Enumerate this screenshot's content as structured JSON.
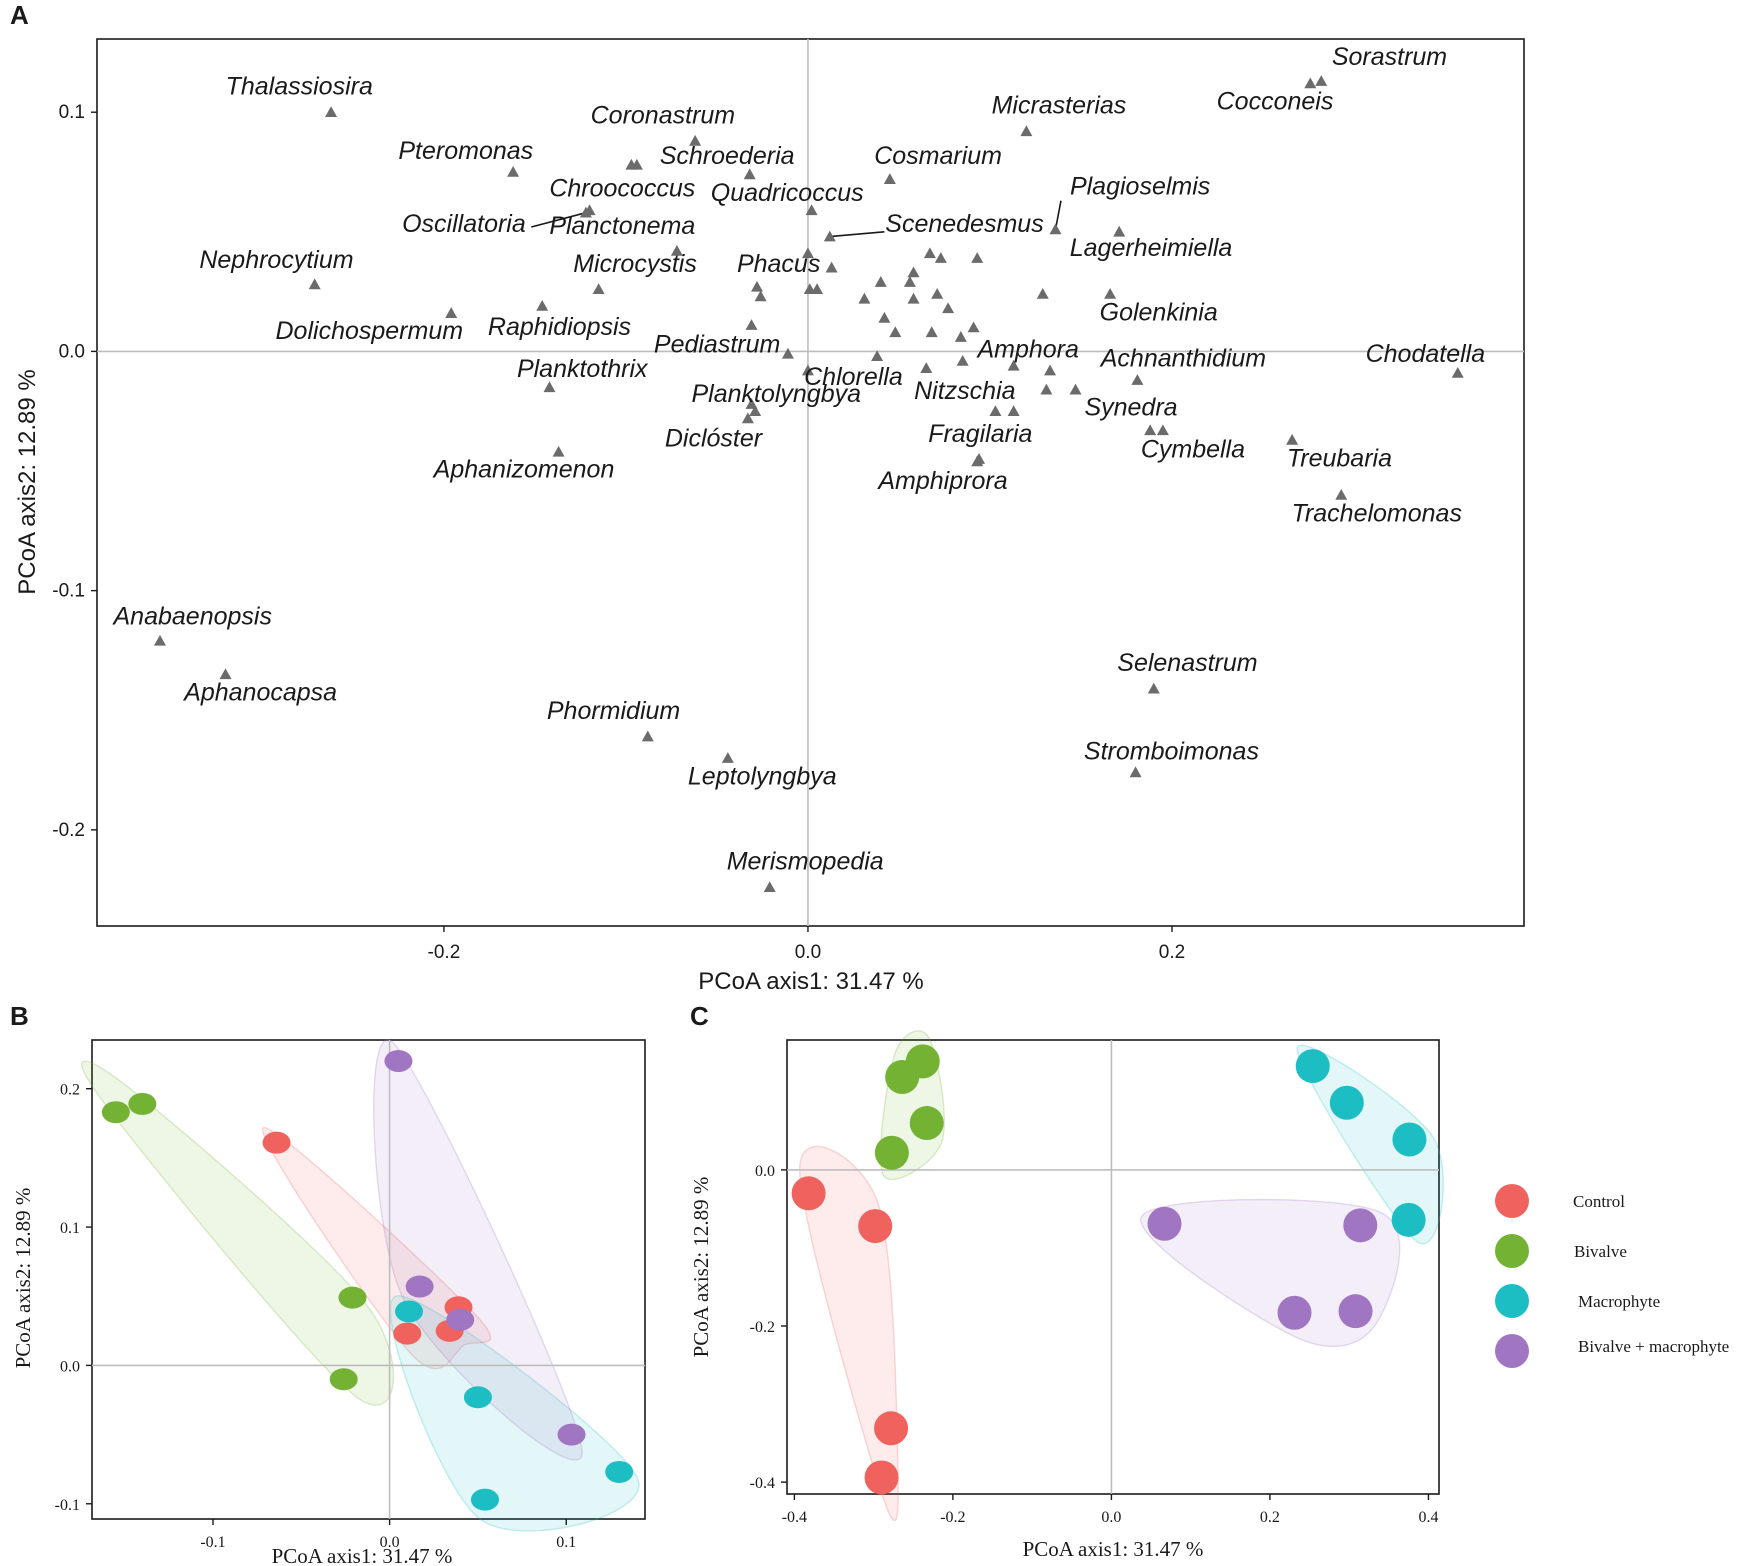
{
  "colors": {
    "Control": "#f0625d",
    "Bivalve": "#73b232",
    "Macrophyte": "#1cbec4",
    "Bivalve + macrophyte": "#a075c2",
    "marker": "#6b6b6b",
    "frame": "#1a1a1a",
    "zero_line": "#bdbdbd"
  },
  "chart_data": [
    {
      "panel": "A",
      "type": "scatter",
      "xlabel": "PCoA axis1:  31.47 %",
      "ylabel": "PCoA axis2:  12.89 %",
      "xlim": [
        -0.3906,
        0.3934
      ],
      "ylim": [
        -0.2402,
        0.1306
      ],
      "xticks": [
        -0.2,
        0.0,
        0.2
      ],
      "xtick_labels": [
        "-0.2",
        "0.0",
        "0.2"
      ],
      "yticks": [
        -0.2,
        -0.1,
        0.0,
        0.1
      ],
      "ytick_labels": [
        "-0.2",
        "-0.1",
        "0.0",
        "0.1"
      ],
      "zero_lines": true,
      "labeled_points": [
        {
          "label": "Thalassiosira",
          "x": -0.262,
          "y": 0.1,
          "lx": -0.2795,
          "ly": 0.1074
        },
        {
          "label": "Sorastrum",
          "x": 0.282,
          "y": 0.113,
          "lx": 0.3195,
          "ly": 0.1198
        },
        {
          "label": "Cocconeis",
          "x": 0.276,
          "y": 0.112,
          "lx": 0.2566,
          "ly": 0.1012
        },
        {
          "label": "Coronastrum",
          "x": -0.062,
          "y": 0.088,
          "lx": -0.0797,
          "ly": 0.0952
        },
        {
          "label": "Micrasterias",
          "x": 0.12,
          "y": 0.092,
          "lx": 0.1379,
          "ly": 0.0995
        },
        {
          "label": "Pteromonas",
          "x": -0.162,
          "y": 0.075,
          "lx": -0.188,
          "ly": 0.0805
        },
        {
          "label": "Schroederia",
          "x": -0.094,
          "y": 0.078,
          "lx": -0.0444,
          "ly": 0.0783
        },
        {
          "label": "Cosmarium",
          "x": 0.045,
          "y": 0.072,
          "lx": 0.0715,
          "ly": 0.0783
        },
        {
          "label": "Chroococcus",
          "x": -0.12,
          "y": 0.059,
          "lx": -0.102,
          "ly": 0.0648
        },
        {
          "label": "Quadricoccus",
          "x": 0.002,
          "y": 0.059,
          "lx": -0.0114,
          "ly": 0.0628
        },
        {
          "label": "Plagioselmis",
          "x": 0.136,
          "y": 0.051,
          "lx": 0.1825,
          "ly": 0.0656
        },
        {
          "label": "Oscillatoria",
          "x": -0.122,
          "y": 0.058,
          "lx": -0.189,
          "ly": 0.0499
        },
        {
          "label": "Planctonema",
          "x": -0.072,
          "y": 0.042,
          "lx": -0.102,
          "ly": 0.0491
        },
        {
          "label": "Scenedesmus",
          "x": 0.012,
          "y": 0.048,
          "lx": 0.086,
          "ly": 0.0499
        },
        {
          "label": "Lagerheimiella",
          "x": 0.171,
          "y": 0.05,
          "lx": 0.1885,
          "ly": 0.0398
        },
        {
          "label": "Nephrocytium",
          "x": -0.271,
          "y": 0.028,
          "lx": -0.292,
          "ly": 0.0349
        },
        {
          "label": "Microcystis",
          "x": -0.115,
          "y": 0.026,
          "lx": -0.095,
          "ly": 0.0333
        },
        {
          "label": "Phacus",
          "x": -0.026,
          "y": 0.023,
          "lx": -0.0161,
          "ly": 0.0333
        },
        {
          "label": "Golenkinia",
          "x": 0.166,
          "y": 0.024,
          "lx": 0.1927,
          "ly": 0.0129
        },
        {
          "label": "Dolichospermum",
          "x": -0.196,
          "y": 0.016,
          "lx": -0.241,
          "ly": 0.0052
        },
        {
          "label": "Raphidiopsis",
          "x": -0.146,
          "y": 0.019,
          "lx": -0.1365,
          "ly": 0.0069
        },
        {
          "label": "Pediastrum",
          "x": -0.031,
          "y": 0.011,
          "lx": -0.0499,
          "ly": -0.0005
        },
        {
          "label": "Amphora",
          "x": 0.133,
          "y": -0.008,
          "lx": 0.121,
          "ly": -0.0026
        },
        {
          "label": "Achnanthidium",
          "x": 0.181,
          "y": -0.012,
          "lx": 0.2063,
          "ly": -0.0064
        },
        {
          "label": "Chodatella",
          "x": 0.357,
          "y": -0.009,
          "lx": 0.3392,
          "ly": -0.0044
        },
        {
          "label": "Planktothrix",
          "x": -0.142,
          "y": -0.015,
          "lx": -0.124,
          "ly": -0.0107
        },
        {
          "label": "Chlorella",
          "x": 0.0,
          "y": -0.008,
          "lx": 0.025,
          "ly": -0.014
        },
        {
          "label": "Nitzschia",
          "x": 0.103,
          "y": -0.025,
          "lx": 0.0862,
          "ly": -0.0199
        },
        {
          "label": "Planktolyngbya",
          "x": -0.029,
          "y": -0.025,
          "lx": -0.0174,
          "ly": -0.0211
        },
        {
          "label": "Synedra",
          "x": 0.195,
          "y": -0.033,
          "lx": 0.1775,
          "ly": -0.0267
        },
        {
          "label": "Fragilaria",
          "x": 0.094,
          "y": -0.045,
          "lx": 0.0947,
          "ly": -0.0379
        },
        {
          "label": "Cymbella",
          "x": 0.188,
          "y": -0.033,
          "lx": 0.2115,
          "ly": -0.0443
        },
        {
          "label": "Treubaria",
          "x": 0.266,
          "y": -0.037,
          "lx": 0.292,
          "ly": -0.0481
        },
        {
          "label": "Diclóster",
          "x": -0.033,
          "y": -0.028,
          "lx": -0.0519,
          "ly": -0.0398
        },
        {
          "label": "Aphanizomenon",
          "x": -0.137,
          "y": -0.042,
          "lx": -0.156,
          "ly": -0.0528
        },
        {
          "label": "Amphiprora",
          "x": 0.093,
          "y": -0.046,
          "lx": 0.0742,
          "ly": -0.0576
        },
        {
          "label": "Trachelomonas",
          "x": 0.293,
          "y": -0.06,
          "lx": 0.3125,
          "ly": -0.0711
        },
        {
          "label": "Anabaenopsis",
          "x": -0.356,
          "y": -0.121,
          "lx": -0.338,
          "ly": -0.1142
        },
        {
          "label": "Aphanocapsa",
          "x": -0.32,
          "y": -0.135,
          "lx": -0.3007,
          "ly": -0.1459
        },
        {
          "label": "Selenastrum",
          "x": 0.19,
          "y": -0.141,
          "lx": 0.2085,
          "ly": -0.1337
        },
        {
          "label": "Phormidium",
          "x": -0.088,
          "y": -0.161,
          "lx": -0.1068,
          "ly": -0.1536
        },
        {
          "label": "Stromboimonas",
          "x": 0.18,
          "y": -0.176,
          "lx": 0.1997,
          "ly": -0.1705
        },
        {
          "label": "Leptolyngbya",
          "x": -0.044,
          "y": -0.17,
          "lx": -0.0251,
          "ly": -0.1811
        },
        {
          "label": "Merismopedia",
          "x": -0.021,
          "y": -0.224,
          "lx": -0.0015,
          "ly": -0.2166
        }
      ],
      "leader_lines": [
        {
          "from": "Oscillatoria",
          "x1": -0.152,
          "y1": 0.052,
          "x2": -0.122,
          "y2": 0.058
        },
        {
          "from": "Scenedesmus",
          "x1": 0.012,
          "y1": 0.048,
          "x2": 0.042,
          "y2": 0.05
        },
        {
          "from": "Plagioselmis",
          "x1": 0.136,
          "y1": 0.051,
          "x2": 0.139,
          "y2": 0.063
        }
      ],
      "unlabeled_points": [
        {
          "x": -0.097,
          "y": 0.078
        },
        {
          "x": -0.032,
          "y": 0.074
        },
        {
          "x": 0.0,
          "y": 0.041
        },
        {
          "x": 0.013,
          "y": 0.035
        },
        {
          "x": 0.005,
          "y": 0.026
        },
        {
          "x": 0.031,
          "y": 0.022
        },
        {
          "x": 0.04,
          "y": 0.029
        },
        {
          "x": 0.058,
          "y": 0.033
        },
        {
          "x": 0.056,
          "y": 0.029
        },
        {
          "x": 0.067,
          "y": 0.041
        },
        {
          "x": 0.073,
          "y": 0.039
        },
        {
          "x": 0.071,
          "y": 0.024
        },
        {
          "x": 0.058,
          "y": 0.022
        },
        {
          "x": 0.093,
          "y": 0.039
        },
        {
          "x": 0.129,
          "y": 0.024
        },
        {
          "x": 0.077,
          "y": 0.018
        },
        {
          "x": 0.042,
          "y": 0.014
        },
        {
          "x": 0.048,
          "y": 0.008
        },
        {
          "x": 0.068,
          "y": 0.008
        },
        {
          "x": 0.084,
          "y": 0.006
        },
        {
          "x": 0.091,
          "y": 0.01
        },
        {
          "x": 0.038,
          "y": -0.002
        },
        {
          "x": 0.065,
          "y": -0.007
        },
        {
          "x": 0.085,
          "y": -0.004
        },
        {
          "x": 0.131,
          "y": -0.016
        },
        {
          "x": 0.147,
          "y": -0.016
        },
        {
          "x": -0.011,
          "y": -0.001
        },
        {
          "x": -0.031,
          "y": -0.022
        },
        {
          "x": 0.113,
          "y": -0.025
        },
        {
          "x": 0.113,
          "y": -0.006
        },
        {
          "x": 0.001,
          "y": 0.026
        },
        {
          "x": -0.028,
          "y": 0.027
        }
      ]
    },
    {
      "panel": "B",
      "type": "scatter",
      "xlabel": "PCoA axis1:  31.47 %",
      "ylabel": "PCoA axis2:  12.89 %",
      "xlim": [
        -0.1685,
        0.1446
      ],
      "ylim": [
        -0.111,
        0.2352
      ],
      "xticks": [
        -0.1,
        0.0,
        0.1
      ],
      "xtick_labels": [
        "-0.1",
        "0.0",
        "0.1"
      ],
      "yticks": [
        -0.1,
        0.0,
        0.1,
        0.2
      ],
      "ytick_labels": [
        "-0.1",
        "0.0",
        "0.1",
        "0.2"
      ],
      "zero_lines": true,
      "series": [
        {
          "name": "Control",
          "x": [
            -0.064,
            0.039,
            0.01,
            0.034
          ],
          "y": [
            0.161,
            0.042,
            0.023,
            0.025
          ]
        },
        {
          "name": "Bivalve",
          "x": [
            -0.155,
            -0.14,
            -0.021,
            -0.026
          ],
          "y": [
            0.183,
            0.189,
            0.049,
            -0.01
          ]
        },
        {
          "name": "Macrophyte",
          "x": [
            0.011,
            0.05,
            0.13,
            0.054
          ],
          "y": [
            0.039,
            -0.023,
            -0.077,
            -0.097
          ]
        },
        {
          "name": "Bivalve + macrophyte",
          "x": [
            0.005,
            0.017,
            0.04,
            0.103
          ],
          "y": [
            0.22,
            0.057,
            0.033,
            -0.05
          ]
        }
      ]
    },
    {
      "panel": "C",
      "type": "scatter",
      "xlabel": "PCoA axis1:  31.47 %",
      "ylabel": "PCoA axis2:  12.89 %",
      "xlim": [
        -0.4093,
        0.4133
      ],
      "ylim": [
        -0.4152,
        0.1664
      ],
      "xticks": [
        -0.4,
        -0.2,
        0.0,
        0.2,
        0.4
      ],
      "xtick_labels": [
        "-0.4",
        "-0.2",
        "0.0",
        "0.2",
        "0.4"
      ],
      "yticks": [
        -0.4,
        -0.2,
        0.0
      ],
      "ytick_labels": [
        "-0.4",
        "-0.2",
        "0.0"
      ],
      "zero_lines": true,
      "series": [
        {
          "name": "Control",
          "x": [
            -0.382,
            -0.298,
            -0.278,
            -0.29
          ],
          "y": [
            -0.03,
            -0.072,
            -0.331,
            -0.394
          ]
        },
        {
          "name": "Bivalve",
          "x": [
            -0.238,
            -0.264,
            -0.233,
            -0.277
          ],
          "y": [
            0.139,
            0.119,
            0.06,
            0.022
          ]
        },
        {
          "name": "Macrophyte",
          "x": [
            0.254,
            0.297,
            0.376,
            0.375
          ],
          "y": [
            0.133,
            0.086,
            0.039,
            -0.064
          ]
        },
        {
          "name": "Bivalve + macrophyte",
          "x": [
            0.067,
            0.314,
            0.231,
            0.308
          ],
          "y": [
            -0.069,
            -0.071,
            -0.183,
            -0.181
          ]
        }
      ]
    }
  ],
  "legend": {
    "position": "right",
    "entries": [
      "Control",
      "Bivalve",
      "Macrophyte",
      "Bivalve + macrophyte"
    ]
  }
}
